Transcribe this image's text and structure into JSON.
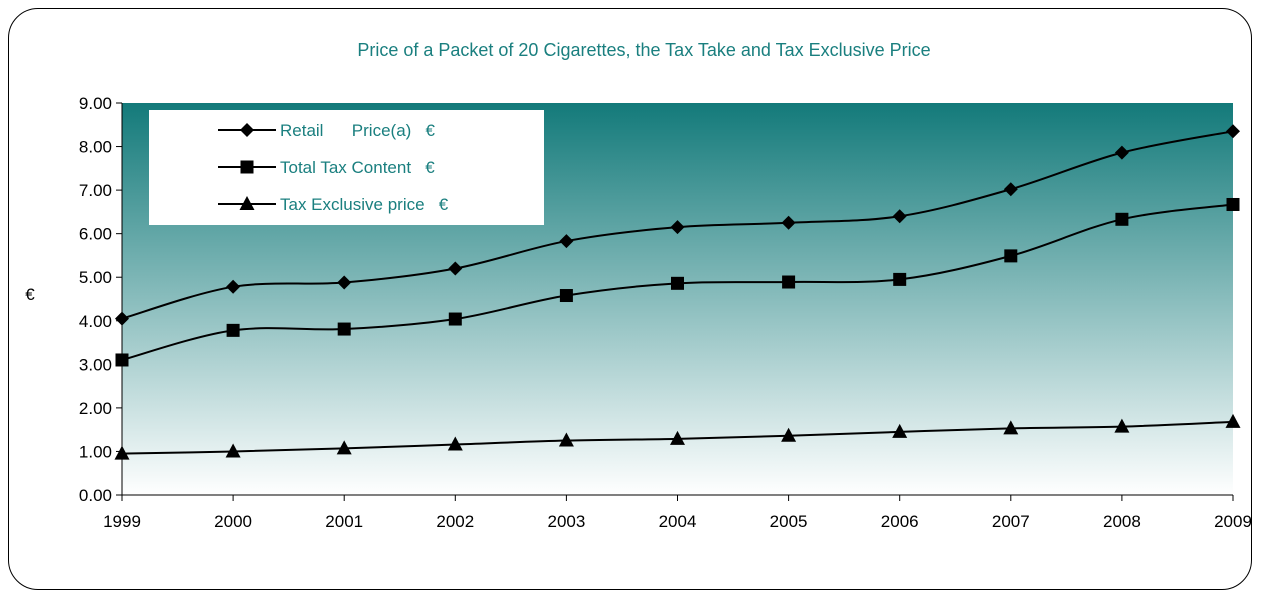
{
  "chart_data": {
    "type": "line",
    "title": "Price of a Packet of 20 Cigarettes, the Tax Take and Tax Exclusive Price",
    "xlabel": "",
    "ylabel": "€",
    "categories": [
      "1999",
      "2000",
      "2001",
      "2002",
      "2003",
      "2004",
      "2005",
      "2006",
      "2007",
      "2008",
      "2009"
    ],
    "ylim": [
      0,
      9
    ],
    "yticks": [
      "0.00",
      "1.00",
      "2.00",
      "3.00",
      "4.00",
      "5.00",
      "6.00",
      "7.00",
      "8.00",
      "9.00"
    ],
    "legend_position": "top-left",
    "series": [
      {
        "name": "Retail      Price(a)   €",
        "marker": "diamond",
        "values": [
          4.05,
          4.78,
          4.88,
          5.2,
          5.83,
          6.15,
          6.25,
          6.4,
          7.02,
          7.86,
          8.35
        ]
      },
      {
        "name": "Total Tax Content   €",
        "marker": "square",
        "values": [
          3.1,
          3.78,
          3.81,
          4.04,
          4.58,
          4.86,
          4.89,
          4.95,
          5.49,
          6.33,
          6.67
        ]
      },
      {
        "name": "Tax Exclusive price   €",
        "marker": "triangle",
        "values": [
          0.95,
          1.0,
          1.07,
          1.16,
          1.25,
          1.29,
          1.36,
          1.45,
          1.53,
          1.57,
          1.68
        ]
      }
    ],
    "colors": {
      "background_top": "#137a7a",
      "background_bottom": "#ffffff",
      "line": "#000000",
      "text": "#1a7f7f"
    }
  }
}
